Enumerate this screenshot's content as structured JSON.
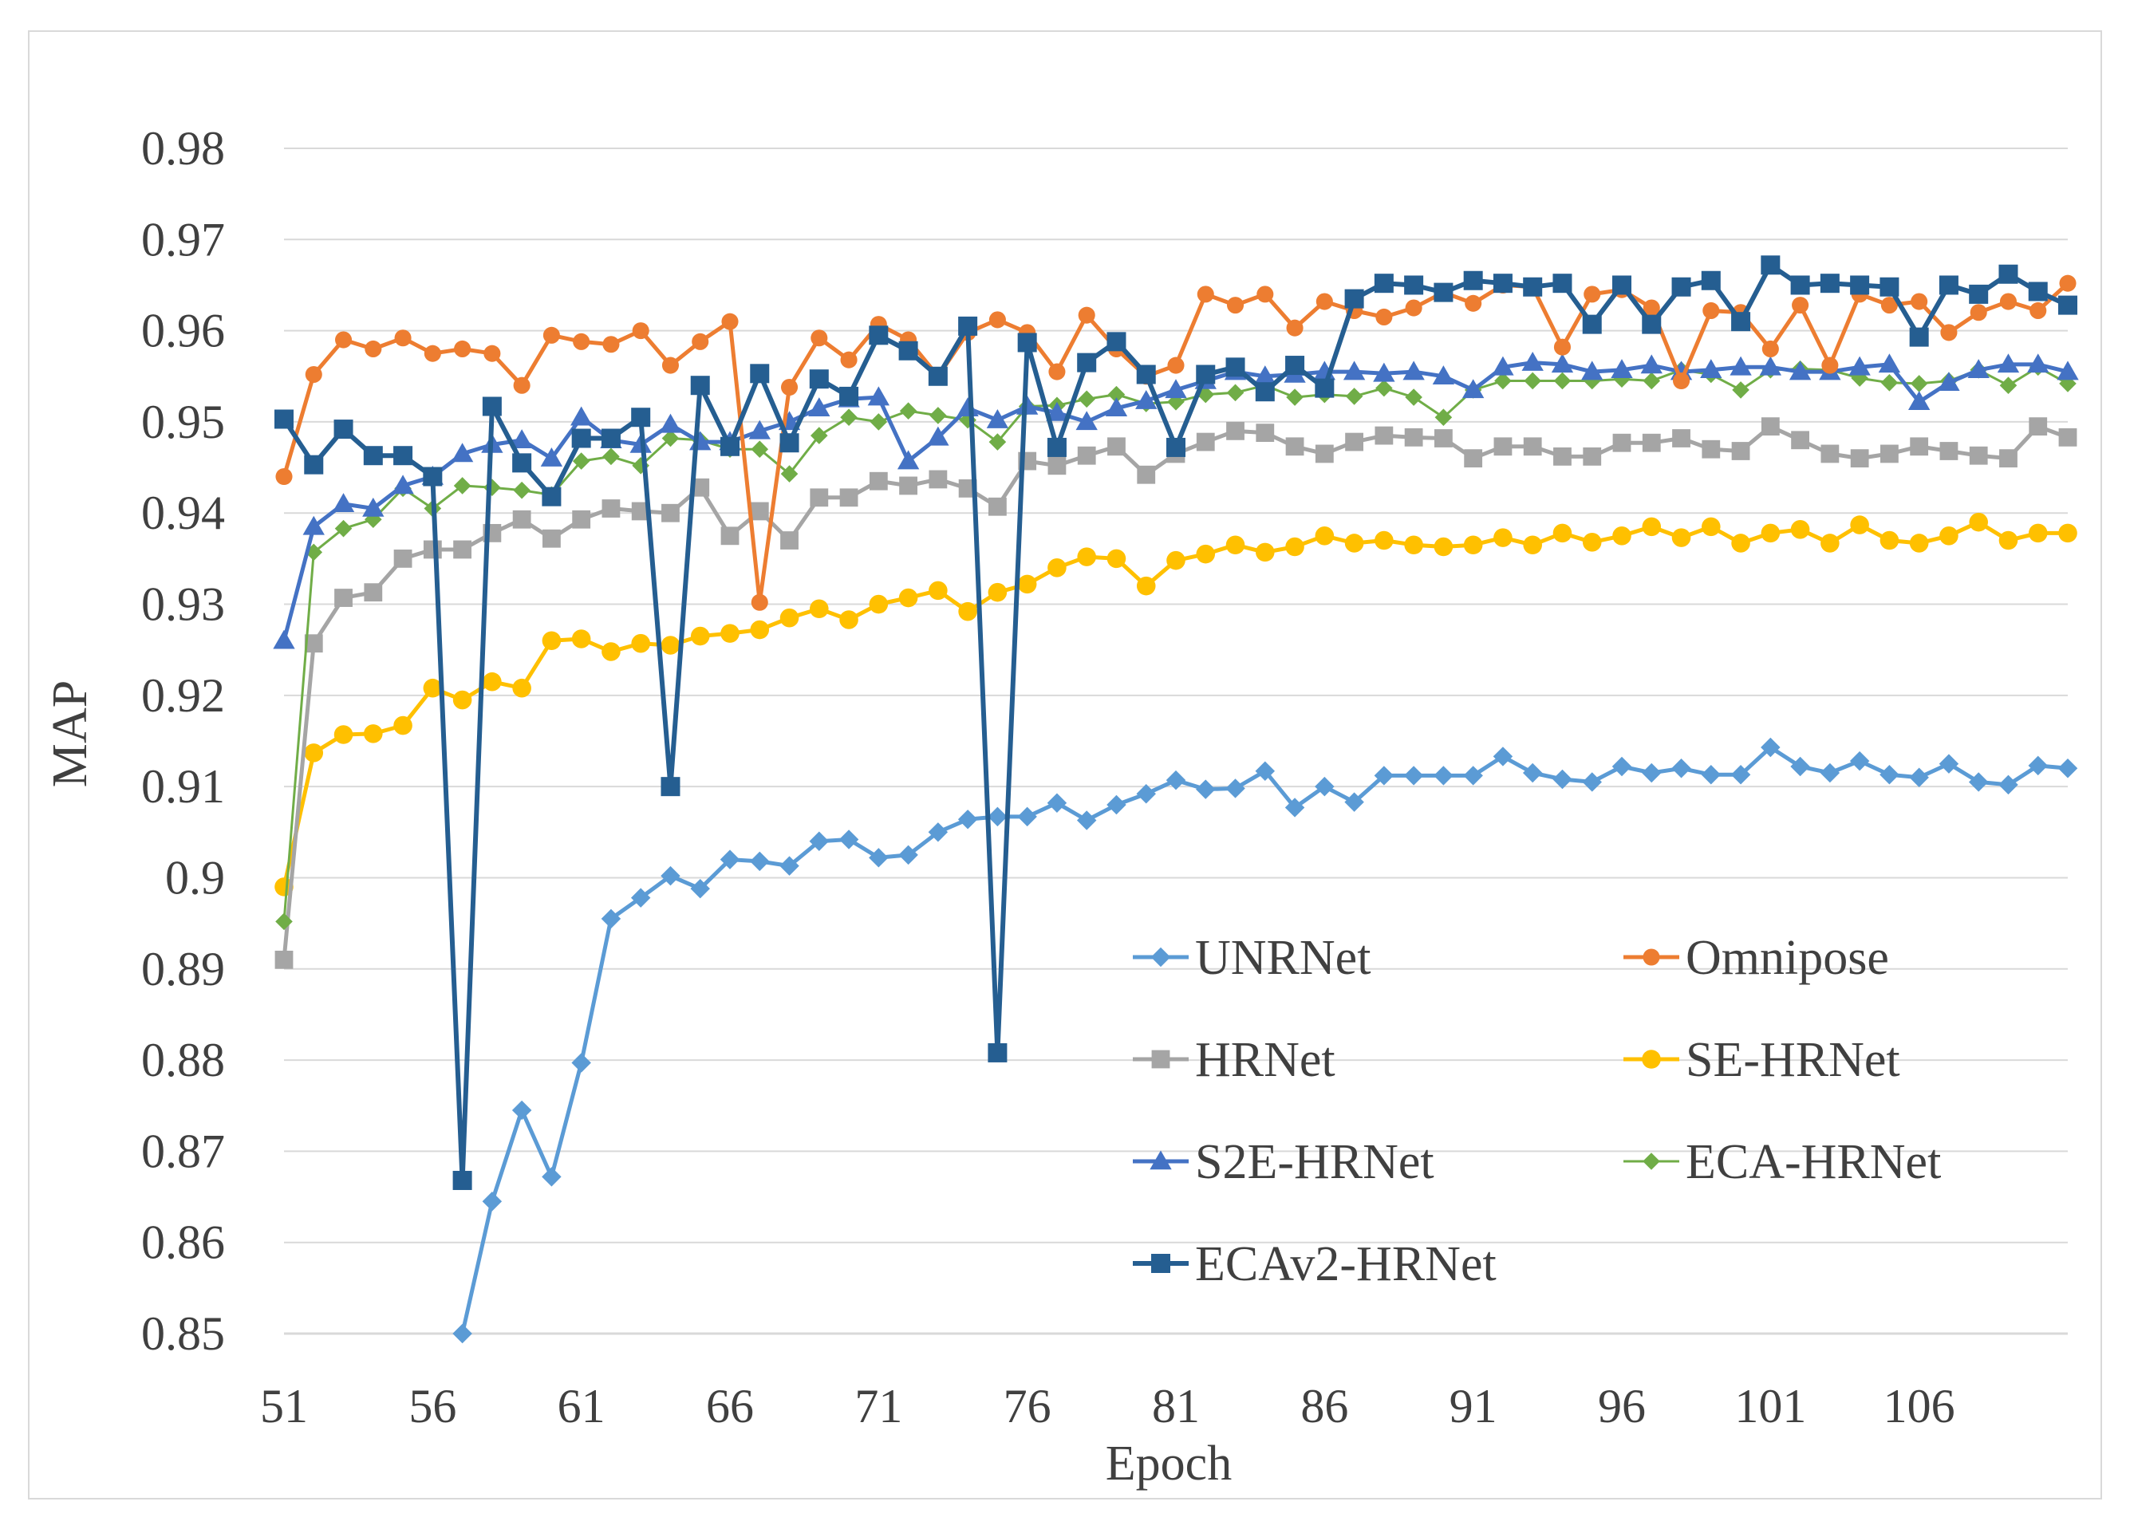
{
  "chart_data": {
    "type": "line",
    "title": "",
    "xlabel": "Epoch",
    "ylabel": "MAP",
    "ylim": [
      0.85,
      0.98
    ],
    "y_ticks": [
      "0.85",
      "0.86",
      "0.87",
      "0.88",
      "0.89",
      "0.9",
      "0.91",
      "0.92",
      "0.93",
      "0.94",
      "0.95",
      "0.96",
      "0.97",
      "0.98"
    ],
    "x_ticks": [
      "51",
      "56",
      "61",
      "66",
      "71",
      "76",
      "81",
      "86",
      "91",
      "96",
      "101",
      "106"
    ],
    "xlim": [
      51,
      111
    ],
    "grid": "horizontal",
    "legend_position": "bottom-right",
    "series": [
      {
        "name": "UNRNet",
        "color": "#5b9bd5",
        "marker": "diamond",
        "start_epoch": 57,
        "values": [
          0.85,
          0.8645,
          0.8745,
          0.8672,
          0.8797,
          0.8955,
          0.8978,
          0.9002,
          0.8988,
          0.902,
          0.9018,
          0.9013,
          0.904,
          0.9042,
          0.9022,
          0.9025,
          0.905,
          0.9064,
          0.9067,
          0.9067,
          0.9082,
          0.9063,
          0.908,
          0.9092,
          0.9107,
          0.9097,
          0.9098,
          0.9117,
          0.9077,
          0.91,
          0.9083,
          0.9112,
          0.9112,
          0.9112,
          0.9112,
          0.9133,
          0.9115,
          0.9108,
          0.9105,
          0.9122,
          0.9115,
          0.912,
          0.9113,
          0.9113,
          0.9143,
          0.9122,
          0.9115,
          0.9128,
          0.9113,
          0.911,
          0.9125,
          0.9105,
          0.9102,
          0.9123,
          0.912
        ]
      },
      {
        "name": "Omnipose",
        "color": "#ed7d31",
        "marker": "circle",
        "start_epoch": 51,
        "values": [
          0.944,
          0.9552,
          0.959,
          0.958,
          0.9592,
          0.9575,
          0.958,
          0.9575,
          0.954,
          0.9595,
          0.9588,
          0.9585,
          0.96,
          0.9562,
          0.9588,
          0.961,
          0.9302,
          0.9538,
          0.9592,
          0.9568,
          0.9607,
          0.959,
          0.955,
          0.9598,
          0.9612,
          0.9598,
          0.9555,
          0.9617,
          0.958,
          0.955,
          0.9562,
          0.964,
          0.9628,
          0.964,
          0.9603,
          0.9632,
          0.9622,
          0.9615,
          0.9625,
          0.9642,
          0.963,
          0.965,
          0.9648,
          0.9582,
          0.964,
          0.9645,
          0.9625,
          0.9545,
          0.9622,
          0.962,
          0.958,
          0.9628,
          0.9562,
          0.964,
          0.9628,
          0.9632,
          0.9598,
          0.962,
          0.9632,
          0.9622,
          0.9652
        ]
      },
      {
        "name": "HRNet",
        "color": "#a5a5a5",
        "marker": "square",
        "start_epoch": 51,
        "values": [
          0.891,
          0.9257,
          0.9307,
          0.9313,
          0.935,
          0.936,
          0.936,
          0.9378,
          0.9393,
          0.9372,
          0.9393,
          0.9405,
          0.9402,
          0.94,
          0.9428,
          0.9375,
          0.9402,
          0.937,
          0.9417,
          0.9417,
          0.9435,
          0.943,
          0.9437,
          0.9427,
          0.9407,
          0.9457,
          0.9452,
          0.9463,
          0.9473,
          0.9442,
          0.9465,
          0.9478,
          0.949,
          0.9488,
          0.9473,
          0.9465,
          0.9478,
          0.9485,
          0.9483,
          0.9482,
          0.946,
          0.9473,
          0.9473,
          0.9462,
          0.9462,
          0.9477,
          0.9477,
          0.9482,
          0.947,
          0.9468,
          0.9495,
          0.948,
          0.9465,
          0.946,
          0.9465,
          0.9473,
          0.9468,
          0.9463,
          0.946,
          0.9495,
          0.9483
        ]
      },
      {
        "name": "SE-HRNet",
        "color": "#ffc000",
        "marker": "circle",
        "start_epoch": 51,
        "values": [
          0.899,
          0.9137,
          0.9157,
          0.9158,
          0.9167,
          0.9208,
          0.9195,
          0.9215,
          0.9208,
          0.926,
          0.9262,
          0.9248,
          0.9257,
          0.9255,
          0.9265,
          0.9268,
          0.9272,
          0.9285,
          0.9295,
          0.9283,
          0.93,
          0.9307,
          0.9315,
          0.9292,
          0.9313,
          0.9322,
          0.934,
          0.9352,
          0.935,
          0.932,
          0.9348,
          0.9355,
          0.9365,
          0.9357,
          0.9363,
          0.9375,
          0.9367,
          0.937,
          0.9365,
          0.9363,
          0.9365,
          0.9373,
          0.9365,
          0.9378,
          0.9368,
          0.9375,
          0.9385,
          0.9373,
          0.9385,
          0.9367,
          0.9378,
          0.9382,
          0.9367,
          0.9387,
          0.937,
          0.9367,
          0.9375,
          0.939,
          0.937,
          0.9378,
          0.9378
        ]
      },
      {
        "name": "S2E-HRNet",
        "color": "#4472c4",
        "marker": "triangle",
        "start_epoch": 51,
        "values": [
          0.926,
          0.9385,
          0.941,
          0.9405,
          0.943,
          0.944,
          0.9465,
          0.9475,
          0.948,
          0.946,
          0.9505,
          0.948,
          0.9475,
          0.9497,
          0.9478,
          0.9478,
          0.949,
          0.95,
          0.9515,
          0.9525,
          0.9527,
          0.9457,
          0.9483,
          0.9515,
          0.9502,
          0.9517,
          0.951,
          0.95,
          0.9515,
          0.9523,
          0.9535,
          0.9545,
          0.9555,
          0.955,
          0.9552,
          0.9555,
          0.9555,
          0.9553,
          0.9555,
          0.955,
          0.9535,
          0.956,
          0.9565,
          0.9563,
          0.9555,
          0.9557,
          0.9562,
          0.9555,
          0.9557,
          0.956,
          0.956,
          0.9555,
          0.9555,
          0.956,
          0.9563,
          0.9522,
          0.9543,
          0.9557,
          0.9563,
          0.9563,
          0.9555
        ]
      },
      {
        "name": "ECA-HRNet",
        "color": "#70ad47",
        "marker": "diamond",
        "start_epoch": 51,
        "values": [
          0.8952,
          0.9357,
          0.9383,
          0.9393,
          0.9427,
          0.9405,
          0.943,
          0.9428,
          0.9425,
          0.942,
          0.9457,
          0.9462,
          0.9452,
          0.9482,
          0.948,
          0.947,
          0.947,
          0.9443,
          0.9485,
          0.9505,
          0.95,
          0.9512,
          0.9507,
          0.9502,
          0.9478,
          0.9517,
          0.9518,
          0.9525,
          0.953,
          0.952,
          0.9522,
          0.953,
          0.9532,
          0.954,
          0.9527,
          0.953,
          0.9528,
          0.9537,
          0.9527,
          0.9505,
          0.9535,
          0.9545,
          0.9545,
          0.9545,
          0.9545,
          0.9547,
          0.9545,
          0.9557,
          0.9552,
          0.9535,
          0.9557,
          0.9558,
          0.9557,
          0.9548,
          0.9543,
          0.9542,
          0.9545,
          0.9557,
          0.954,
          0.956,
          0.9542
        ]
      },
      {
        "name": "ECAv2-HRNet",
        "color": "#255e91",
        "marker": "square",
        "start_epoch": 51,
        "values": [
          0.9503,
          0.9453,
          0.9492,
          0.9463,
          0.9463,
          0.944,
          0.8668,
          0.9517,
          0.9455,
          0.9418,
          0.9482,
          0.9482,
          0.9505,
          0.91,
          0.954,
          0.9473,
          0.9553,
          0.9477,
          0.9547,
          0.9528,
          0.9595,
          0.9578,
          0.955,
          0.9605,
          0.8808,
          0.9587,
          0.9472,
          0.9565,
          0.9588,
          0.9552,
          0.9472,
          0.9552,
          0.956,
          0.9533,
          0.9562,
          0.9537,
          0.9635,
          0.9652,
          0.965,
          0.9642,
          0.9655,
          0.9652,
          0.9648,
          0.9652,
          0.9607,
          0.965,
          0.9607,
          0.9648,
          0.9655,
          0.961,
          0.9672,
          0.965,
          0.9652,
          0.965,
          0.9648,
          0.9593,
          0.965,
          0.964,
          0.9662,
          0.9643,
          0.9628
        ]
      }
    ]
  }
}
